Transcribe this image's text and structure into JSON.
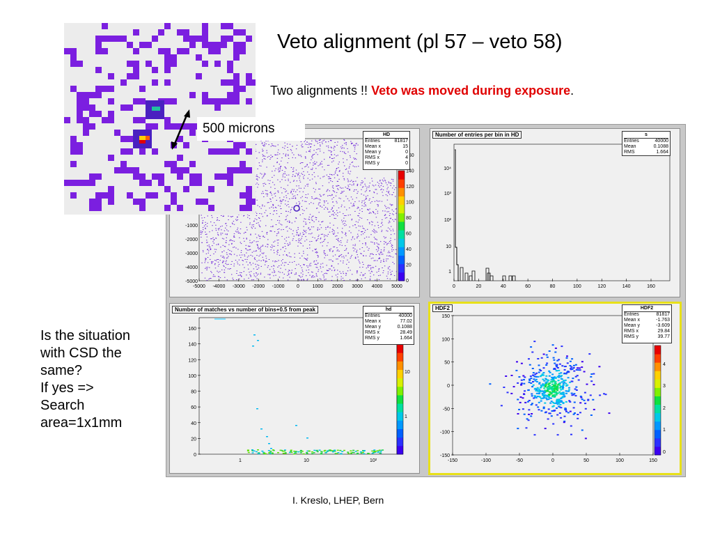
{
  "slide": {
    "title": "Veto alignment  (pl 57 – veto 58)",
    "subtitle_prefix": "Two alignments !! ",
    "subtitle_red": "Veto was moved during exposure",
    "subtitle_suffix": ".",
    "side_text": [
      "Is the situation",
      "with CSD the",
      "same?",
      "If yes =>",
      "Search",
      "area=1x1mm"
    ],
    "annotation": "500 microns",
    "footer": "I. Kreslo, LHEP, Bern",
    "colors": {
      "red_text": "#e00000",
      "marker": "#7b1fe0",
      "selected_border": "#e8e018"
    }
  },
  "chart_data": [
    {
      "type": "heatmap",
      "name_label": "HD",
      "stats": [
        [
          "Entries",
          "81817"
        ],
        [
          "Mean x",
          "15"
        ],
        [
          "Mean y",
          "0"
        ],
        [
          "RMS x",
          "4"
        ],
        [
          "RMS y",
          "0"
        ]
      ],
      "x_ticks": [
        "-5000",
        "-4000",
        "-3000",
        "-2000",
        "-1000",
        "0",
        "1000",
        "2000",
        "3000",
        "4000",
        "5000"
      ],
      "y_ticks": [
        "-1000",
        "-2000",
        "-3000",
        "-4000",
        "-5000"
      ],
      "z_ticks": [
        "160",
        "140",
        "120",
        "100",
        "80",
        "60",
        "40",
        "20",
        "0"
      ],
      "xlim": [
        -5000,
        5000
      ],
      "ylim": [
        -5000,
        5000
      ]
    },
    {
      "type": "line",
      "title": "Number of entries per bin in HD",
      "name_label": "s",
      "stats": [
        [
          "Entries",
          "40000"
        ],
        [
          "Mean",
          "0.1088"
        ],
        [
          "RMS",
          "1.664"
        ]
      ],
      "log_y": true,
      "x_ticks": [
        "0",
        "20",
        "40",
        "60",
        "80",
        "100",
        "120",
        "140",
        "160"
      ],
      "y_ticks": [
        "10⁴",
        "10³",
        "10²",
        "10",
        "1"
      ],
      "xlim": [
        0,
        175
      ]
    },
    {
      "type": "scatter",
      "title": "Number of matches vs number of bins+0.5 from peak",
      "name_label": "hd",
      "stats": [
        [
          "Entries",
          "40000"
        ],
        [
          "Mean x",
          "77.02"
        ],
        [
          "Mean y",
          "0.1088"
        ],
        [
          "RMS x",
          "28.49"
        ],
        [
          "RMS y",
          "1.664"
        ]
      ],
      "log_x": true,
      "x_ticks": [
        "1",
        "10",
        "10²"
      ],
      "y_ticks": [
        "160",
        "140",
        "120",
        "100",
        "80",
        "60",
        "40",
        "20",
        "0"
      ],
      "z_ticks": [
        "10",
        "1"
      ],
      "ylim": [
        0,
        170
      ]
    },
    {
      "type": "heatmap",
      "title": "HDF2",
      "name_label": "HDF2",
      "stats": [
        [
          "Entries",
          "81817"
        ],
        [
          "Mean x",
          "-1.763"
        ],
        [
          "Mean y",
          "-3.609"
        ],
        [
          "RMS x",
          "29.84"
        ],
        [
          "RMS y",
          "39.77"
        ]
      ],
      "x_ticks": [
        "-150",
        "-100",
        "-50",
        "0",
        "50",
        "100",
        "150"
      ],
      "y_ticks": [
        "150",
        "100",
        "50",
        "0",
        "-50",
        "-100",
        "-150"
      ],
      "z_ticks": [
        "4",
        "3",
        "2",
        "1",
        "0"
      ],
      "xlim": [
        -150,
        150
      ],
      "ylim": [
        -150,
        150
      ]
    }
  ]
}
